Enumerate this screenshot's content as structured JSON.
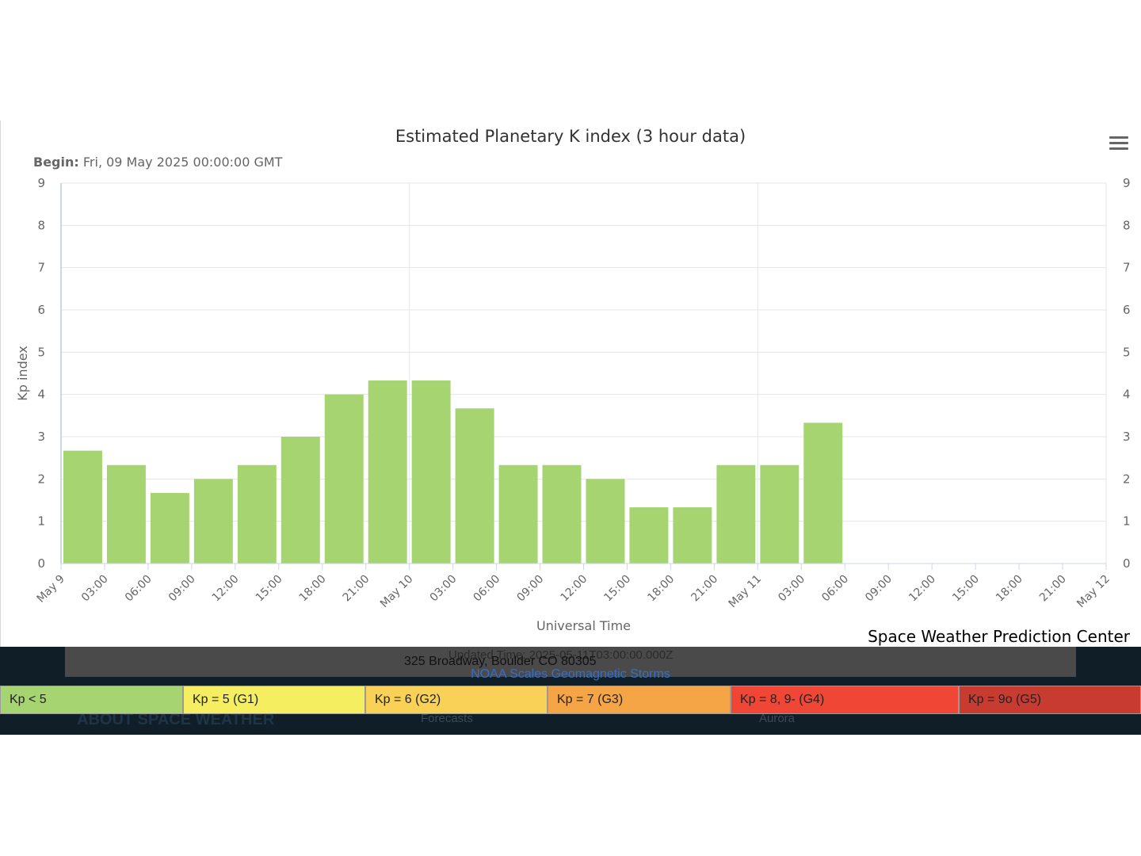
{
  "chart_data": {
    "type": "bar",
    "title": "Estimated Planetary K index (3 hour data)",
    "begin_label": "Begin:",
    "begin_value": "Fri, 09 May 2025 00:00:00 GMT",
    "xlabel": "Universal Time",
    "ylabel": "Kp index",
    "ylim": [
      0,
      9
    ],
    "y_ticks": [
      0,
      1,
      2,
      3,
      4,
      5,
      6,
      7,
      8,
      9
    ],
    "x_ticks": [
      "May 9",
      "03:00",
      "06:00",
      "09:00",
      "12:00",
      "15:00",
      "18:00",
      "21:00",
      "May 10",
      "03:00",
      "06:00",
      "09:00",
      "12:00",
      "15:00",
      "18:00",
      "21:00",
      "May 11",
      "03:00",
      "06:00",
      "09:00",
      "12:00",
      "15:00",
      "18:00",
      "21:00",
      "May 12"
    ],
    "x_major_ticks": [
      "May 9",
      "May 10",
      "May 11",
      "May 12"
    ],
    "categories": [
      "2025-05-09 00:00",
      "2025-05-09 03:00",
      "2025-05-09 06:00",
      "2025-05-09 09:00",
      "2025-05-09 12:00",
      "2025-05-09 15:00",
      "2025-05-09 18:00",
      "2025-05-09 21:00",
      "2025-05-10 00:00",
      "2025-05-10 03:00",
      "2025-05-10 06:00",
      "2025-05-10 09:00",
      "2025-05-10 12:00",
      "2025-05-10 15:00",
      "2025-05-10 18:00",
      "2025-05-10 21:00",
      "2025-05-11 00:00",
      "2025-05-11 03:00"
    ],
    "values": [
      2.67,
      2.33,
      1.67,
      2.0,
      2.33,
      3.0,
      4.0,
      4.33,
      4.33,
      3.67,
      2.33,
      2.33,
      2.0,
      1.33,
      1.33,
      2.33,
      2.33,
      3.33
    ],
    "bar_color": "#a6d471",
    "grid": true,
    "dual_y_axis": true
  },
  "credit": "Space Weather Prediction Center",
  "menu_icon": "hamburger-menu-icon",
  "background_page": {
    "updated": "Updated Time: 2025-05-11T03:00:00.000Z",
    "address": "325 Broadway, Boulder CO 80305",
    "noaa_link": "NOAA Scales Geomagnetic Storms",
    "about": "ABOUT SPACE WEATHER",
    "forecasts": "Forecasts",
    "aurora": "Aurora"
  },
  "legend": [
    {
      "label": "Kp < 5",
      "color": "#a6d471"
    },
    {
      "label": "Kp = 5 (G1)",
      "color": "#f4ee60"
    },
    {
      "label": "Kp = 6 (G2)",
      "color": "#fad157"
    },
    {
      "label": "Kp = 7 (G3)",
      "color": "#f5a546"
    },
    {
      "label": "Kp = 8, 9- (G4)",
      "color": "#ef4635"
    },
    {
      "label": "Kp = 9o (G5)",
      "color": "#c83b30"
    }
  ]
}
